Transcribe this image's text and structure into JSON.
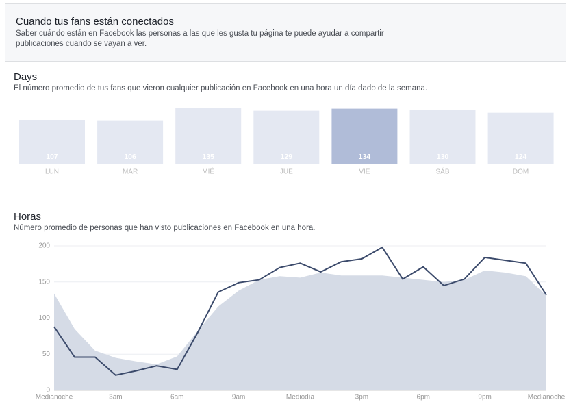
{
  "header": {
    "title": "Cuando tus fans están conectados",
    "description": "Saber cuándo están en Facebook las personas a las que les gusta tu página te puede ayudar a compartir publicaciones cuando se vayan a ver."
  },
  "chart_data": [
    {
      "type": "bar",
      "title": "Days",
      "subtitle": "El número promedio de tus fans que vieron cualquier publicación en Facebook en una hora un día dado de la semana.",
      "categories": [
        "LUN",
        "MAR",
        "MIÉ",
        "JUE",
        "VIE",
        "SÁB",
        "DOM"
      ],
      "values": [
        107,
        106,
        135,
        129,
        134,
        130,
        124
      ],
      "colors": [
        "#e4e8f2",
        "#e4e8f2",
        "#e4e8f2",
        "#e4e8f2",
        "#b0bcd8",
        "#e4e8f2",
        "#e4e8f2"
      ]
    },
    {
      "type": "line",
      "title": "Horas",
      "subtitle": "Número promedio de personas que han visto publicaciones en Facebook en una hora.",
      "categories": [
        "Medianoche",
        null,
        null,
        "3am",
        null,
        null,
        "6am",
        null,
        null,
        "9am",
        null,
        null,
        "Mediodía",
        null,
        null,
        "3pm",
        null,
        null,
        "6pm",
        null,
        null,
        "9pm",
        null,
        null,
        "Medianoche"
      ],
      "series": [
        {
          "style": "area",
          "color": "#d5dbe6",
          "values": [
            134,
            85,
            55,
            45,
            40,
            36,
            47,
            82,
            116,
            138,
            153,
            158,
            156,
            163,
            159,
            159,
            159,
            156,
            153,
            150,
            153,
            166,
            163,
            158,
            131
          ]
        },
        {
          "style": "line",
          "color": "#3b4a6b",
          "values": [
            88,
            46,
            46,
            21,
            27,
            34,
            29,
            80,
            136,
            149,
            153,
            170,
            176,
            164,
            178,
            182,
            198,
            154,
            171,
            145,
            154,
            184,
            180,
            176,
            132
          ]
        }
      ],
      "ylim": [
        0,
        200
      ],
      "yticks": [
        0,
        50,
        100,
        150,
        200
      ],
      "grid": true
    }
  ]
}
